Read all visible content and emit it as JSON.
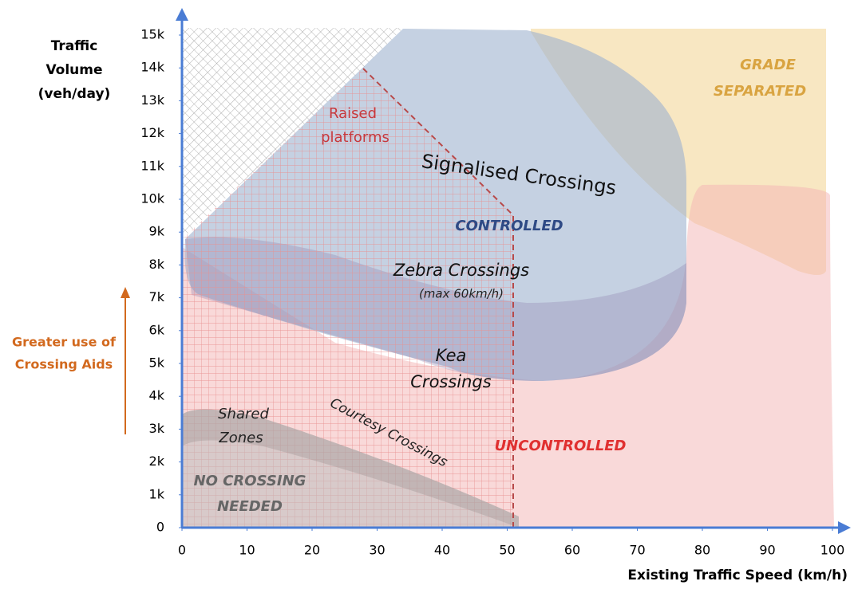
{
  "chart_data": {
    "type": "region",
    "y_label": [
      "Traffic",
      "Volume",
      "(veh/day)"
    ],
    "x_label": "Existing Traffic Speed (km/h)",
    "side_note": [
      "Greater use of",
      "Crossing Aids"
    ],
    "xlim": [
      0,
      100
    ],
    "xticks": [
      0,
      10,
      20,
      30,
      40,
      50,
      60,
      70,
      80,
      90,
      100
    ],
    "ylim": [
      0,
      15000
    ],
    "yticks": [
      0,
      {
        "value": 1000,
        "label": "1k"
      },
      {
        "value": 2000,
        "label": "2k"
      },
      {
        "value": 3000,
        "label": "3k"
      },
      {
        "value": 4000,
        "label": "4k"
      },
      {
        "value": 5000,
        "label": "5k"
      },
      {
        "value": 6000,
        "label": "6k"
      },
      {
        "value": 7000,
        "label": "7k"
      },
      {
        "value": 8000,
        "label": "8k"
      },
      {
        "value": 9000,
        "label": "9k"
      },
      {
        "value": 10000,
        "label": "10k"
      },
      {
        "value": 11000,
        "label": "11k"
      },
      {
        "value": 12000,
        "label": "12k"
      },
      {
        "value": 13000,
        "label": "13k"
      },
      {
        "value": 14000,
        "label": "14k"
      },
      {
        "value": 15000,
        "label": "15k"
      }
    ],
    "regions": {
      "grade_separated": [
        "GRADE",
        "SEPARATED"
      ],
      "raised_platforms": [
        "Raised",
        "platforms"
      ],
      "signalised": "Signalised Crossings",
      "controlled": "CONTROLLED",
      "zebra": "Zebra Crossings",
      "zebra_note": "(max 60km/h)",
      "kea": [
        "Kea",
        "Crossings"
      ],
      "shared": [
        "Shared",
        "Zones"
      ],
      "courtesy": "Courtesy Crossings",
      "uncontrolled": "UNCONTROLLED",
      "none": [
        "NO CROSSING",
        "NEEDED"
      ]
    }
  }
}
